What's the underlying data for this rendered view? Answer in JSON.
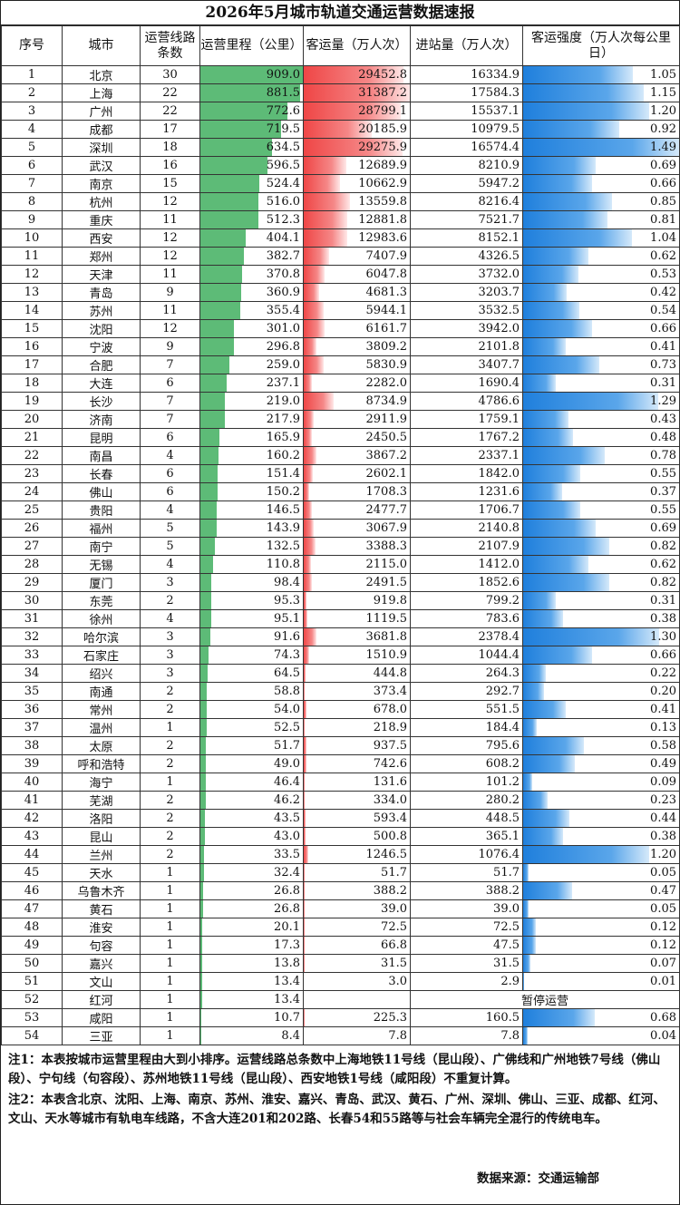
{
  "title": "2026年5月城市轨道交通运营数据速报",
  "headers": [
    "序号",
    "城市",
    "运营线路条数",
    "运营里程（公里）",
    "客运量（万人次）",
    "进站量（万人次）",
    "客运强度（万人次每公里日）"
  ],
  "rows": [
    [
      1,
      "北京",
      30,
      909.0,
      29452.8,
      16334.9,
      1.05
    ],
    [
      2,
      "上海",
      22,
      881.5,
      31387.2,
      17584.3,
      1.15
    ],
    [
      3,
      "广州",
      22,
      772.6,
      28799.1,
      15537.1,
      1.2
    ],
    [
      4,
      "成都",
      17,
      719.5,
      20185.9,
      10979.5,
      0.92
    ],
    [
      5,
      "深圳",
      18,
      634.5,
      29275.9,
      16574.4,
      1.49
    ],
    [
      6,
      "武汉",
      16,
      596.5,
      12689.9,
      8210.9,
      0.69
    ],
    [
      7,
      "南京",
      15,
      524.4,
      10662.9,
      5947.2,
      0.66
    ],
    [
      8,
      "杭州",
      12,
      516.0,
      13559.8,
      8216.4,
      0.85
    ],
    [
      9,
      "重庆",
      11,
      512.3,
      12881.8,
      7521.7,
      0.81
    ],
    [
      10,
      "西安",
      12,
      404.1,
      12983.6,
      8152.1,
      1.04
    ],
    [
      11,
      "郑州",
      12,
      382.7,
      7407.9,
      4326.5,
      0.62
    ],
    [
      12,
      "天津",
      11,
      370.8,
      6047.8,
      3732.0,
      0.53
    ],
    [
      13,
      "青岛",
      9,
      360.9,
      4681.3,
      3203.7,
      0.42
    ],
    [
      14,
      "苏州",
      11,
      355.4,
      5944.1,
      3532.5,
      0.54
    ],
    [
      15,
      "沈阳",
      12,
      301.0,
      6161.7,
      3942.0,
      0.66
    ],
    [
      16,
      "宁波",
      9,
      296.8,
      3809.2,
      2101.8,
      0.41
    ],
    [
      17,
      "合肥",
      7,
      259.0,
      5830.9,
      3407.7,
      0.73
    ],
    [
      18,
      "大连",
      6,
      237.1,
      2282.0,
      1690.4,
      0.31
    ],
    [
      19,
      "长沙",
      7,
      219.0,
      8734.9,
      4786.6,
      1.29
    ],
    [
      20,
      "济南",
      7,
      217.9,
      2911.9,
      1759.1,
      0.43
    ],
    [
      21,
      "昆明",
      6,
      165.9,
      2450.5,
      1767.2,
      0.48
    ],
    [
      22,
      "南昌",
      4,
      160.2,
      3867.2,
      2337.1,
      0.78
    ],
    [
      23,
      "长春",
      6,
      151.4,
      2602.1,
      1842.0,
      0.55
    ],
    [
      24,
      "佛山",
      6,
      150.2,
      1708.3,
      1231.6,
      0.37
    ],
    [
      25,
      "贵阳",
      4,
      146.5,
      2477.7,
      1706.7,
      0.55
    ],
    [
      26,
      "福州",
      5,
      143.9,
      3067.9,
      2140.8,
      0.69
    ],
    [
      27,
      "南宁",
      5,
      132.5,
      3388.3,
      2107.9,
      0.82
    ],
    [
      28,
      "无锡",
      4,
      110.8,
      2115.0,
      1412.0,
      0.62
    ],
    [
      29,
      "厦门",
      3,
      98.4,
      2491.5,
      1852.6,
      0.82
    ],
    [
      30,
      "东莞",
      2,
      95.3,
      919.8,
      799.2,
      0.31
    ],
    [
      31,
      "徐州",
      4,
      95.1,
      1119.5,
      783.6,
      0.38
    ],
    [
      32,
      "哈尔滨",
      3,
      91.6,
      3681.8,
      2378.4,
      1.3
    ],
    [
      33,
      "石家庄",
      3,
      74.3,
      1510.9,
      1044.4,
      0.66
    ],
    [
      34,
      "绍兴",
      3,
      64.5,
      444.8,
      264.3,
      0.22
    ],
    [
      35,
      "南通",
      2,
      58.8,
      373.4,
      292.7,
      0.2
    ],
    [
      36,
      "常州",
      2,
      54.0,
      678.0,
      551.5,
      0.41
    ],
    [
      37,
      "温州",
      1,
      52.5,
      218.9,
      184.4,
      0.13
    ],
    [
      38,
      "太原",
      2,
      51.7,
      937.5,
      795.6,
      0.58
    ],
    [
      39,
      "呼和浩特",
      2,
      49.0,
      742.6,
      608.2,
      0.49
    ],
    [
      40,
      "海宁",
      1,
      46.4,
      131.6,
      101.2,
      0.09
    ],
    [
      41,
      "芜湖",
      2,
      46.2,
      334.0,
      280.2,
      0.23
    ],
    [
      42,
      "洛阳",
      2,
      43.5,
      593.4,
      448.5,
      0.44
    ],
    [
      43,
      "昆山",
      2,
      43.0,
      500.8,
      365.1,
      0.38
    ],
    [
      44,
      "兰州",
      2,
      33.5,
      1246.5,
      1076.4,
      1.2
    ],
    [
      45,
      "天水",
      1,
      32.4,
      51.7,
      51.7,
      0.05
    ],
    [
      46,
      "乌鲁木齐",
      1,
      26.8,
      388.2,
      388.2,
      0.47
    ],
    [
      47,
      "黄石",
      1,
      26.8,
      39.0,
      39.0,
      0.05
    ],
    [
      48,
      "淮安",
      1,
      20.1,
      72.5,
      72.5,
      0.12
    ],
    [
      49,
      "句容",
      1,
      17.3,
      66.8,
      47.5,
      0.12
    ],
    [
      50,
      "嘉兴",
      1,
      13.8,
      31.5,
      31.5,
      0.07
    ],
    [
      51,
      "文山",
      1,
      13.4,
      3.0,
      2.9,
      0.01
    ],
    [
      52,
      "红河",
      1,
      13.4,
      null,
      null,
      null
    ],
    [
      53,
      "咸阳",
      1,
      10.7,
      225.3,
      160.5,
      0.68
    ],
    [
      54,
      "三亚",
      1,
      8.4,
      7.8,
      7.8,
      0.04
    ]
  ],
  "suspended_text": "暂停运营",
  "notes": [
    "注1：本表按城市运营里程由大到小排序。运营线路总条数中上海地铁11号线（昆山段）、广佛线和广州地铁7号线（佛山段）、宁句线（句容段）、苏州地铁11号线（昆山段）、西安地铁1号线（咸阳段）不重复计算。",
    "注2：本表含北京、沈阳、上海、南京、苏州、淮安、嘉兴、青岛、武汉、黄石、广州、深圳、佛山、三亚、成都、红河、文山、天水等城市有轨电车线路，不含大连201和202路、长春54和55路等与社会车辆完全混行的传统电车。"
  ],
  "source": "数据来源：交通运输部",
  "bar_colors": {
    "mileage": "#5dbb77",
    "ridership": "#ef4646",
    "intensity": "#1f7fdc"
  }
}
